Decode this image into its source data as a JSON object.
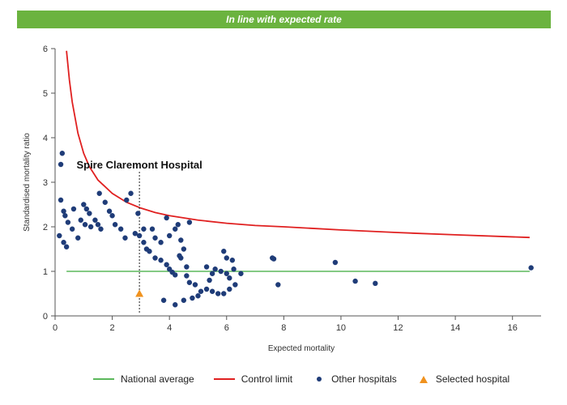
{
  "banner": {
    "text": "In line with expected rate",
    "color": "#6bb33f"
  },
  "chart_data": {
    "type": "scatter",
    "xlabel": "Expected mortality",
    "ylabel": "Standardised mortality ratio",
    "xlim": [
      0,
      17
    ],
    "ylim": [
      0,
      6
    ],
    "x_ticks": [
      "0",
      "2",
      "4",
      "6",
      "8",
      "10",
      "12",
      "14",
      "16"
    ],
    "y_ticks": [
      "0",
      "1",
      "2",
      "3",
      "4",
      "5",
      "6"
    ],
    "grid": false,
    "annotation": {
      "label": "Spire Claremont Hospital",
      "x": 2.95
    },
    "national_average": {
      "name": "National average",
      "y": 1,
      "x_range": [
        0.4,
        16.6
      ],
      "color": "#5cb85c"
    },
    "control_limit": {
      "name": "Control limit",
      "color": "#e02020",
      "points": [
        [
          0.4,
          5.95
        ],
        [
          0.5,
          5.3
        ],
        [
          0.6,
          4.8
        ],
        [
          0.8,
          4.1
        ],
        [
          1.0,
          3.65
        ],
        [
          1.2,
          3.35
        ],
        [
          1.5,
          3.05
        ],
        [
          2.0,
          2.75
        ],
        [
          2.5,
          2.55
        ],
        [
          3.0,
          2.42
        ],
        [
          3.5,
          2.32
        ],
        [
          4.0,
          2.25
        ],
        [
          5.0,
          2.15
        ],
        [
          6.0,
          2.08
        ],
        [
          7.0,
          2.03
        ],
        [
          8.0,
          2.0
        ],
        [
          10.0,
          1.93
        ],
        [
          12.0,
          1.87
        ],
        [
          14.0,
          1.82
        ],
        [
          16.6,
          1.76
        ]
      ]
    },
    "series": [
      {
        "name": "Other hospitals",
        "color": "#1f3c78",
        "points": [
          [
            0.25,
            3.65
          ],
          [
            0.2,
            3.4
          ],
          [
            0.2,
            2.6
          ],
          [
            0.3,
            2.35
          ],
          [
            0.35,
            2.25
          ],
          [
            0.45,
            2.1
          ],
          [
            0.6,
            1.95
          ],
          [
            0.8,
            1.75
          ],
          [
            0.3,
            1.65
          ],
          [
            0.4,
            1.55
          ],
          [
            0.15,
            1.8
          ],
          [
            0.65,
            2.4
          ],
          [
            0.9,
            2.15
          ],
          [
            1.0,
            2.5
          ],
          [
            1.1,
            2.4
          ],
          [
            1.2,
            2.3
          ],
          [
            1.05,
            2.05
          ],
          [
            1.25,
            2.0
          ],
          [
            1.4,
            2.15
          ],
          [
            1.5,
            2.05
          ],
          [
            1.6,
            1.95
          ],
          [
            1.55,
            2.75
          ],
          [
            1.75,
            2.55
          ],
          [
            1.9,
            2.35
          ],
          [
            2.0,
            2.25
          ],
          [
            2.1,
            2.05
          ],
          [
            2.3,
            1.95
          ],
          [
            2.45,
            1.75
          ],
          [
            2.5,
            2.6
          ],
          [
            2.65,
            2.75
          ],
          [
            2.9,
            2.3
          ],
          [
            2.95,
            1.8
          ],
          [
            2.8,
            1.85
          ],
          [
            3.1,
            1.65
          ],
          [
            3.2,
            1.5
          ],
          [
            3.1,
            1.95
          ],
          [
            3.4,
            1.95
          ],
          [
            3.5,
            1.75
          ],
          [
            3.7,
            1.65
          ],
          [
            3.9,
            2.2
          ],
          [
            4.0,
            1.8
          ],
          [
            4.2,
            1.95
          ],
          [
            4.3,
            2.05
          ],
          [
            4.4,
            1.7
          ],
          [
            4.35,
            1.35
          ],
          [
            4.5,
            1.5
          ],
          [
            4.7,
            2.1
          ],
          [
            4.6,
            1.1
          ],
          [
            4.4,
            1.3
          ],
          [
            3.3,
            1.45
          ],
          [
            3.5,
            1.3
          ],
          [
            3.7,
            1.25
          ],
          [
            3.9,
            1.15
          ],
          [
            4.0,
            1.05
          ],
          [
            4.1,
            0.98
          ],
          [
            4.2,
            0.92
          ],
          [
            4.6,
            0.9
          ],
          [
            4.7,
            0.75
          ],
          [
            4.9,
            0.7
          ],
          [
            5.1,
            0.55
          ],
          [
            5.3,
            0.6
          ],
          [
            5.5,
            0.55
          ],
          [
            5.7,
            0.5
          ],
          [
            5.9,
            0.5
          ],
          [
            6.1,
            0.6
          ],
          [
            6.3,
            0.7
          ],
          [
            6.5,
            0.95
          ],
          [
            5.3,
            1.1
          ],
          [
            5.5,
            0.95
          ],
          [
            5.6,
            1.05
          ],
          [
            5.8,
            1.0
          ],
          [
            6.0,
            0.95
          ],
          [
            6.1,
            0.85
          ],
          [
            6.25,
            1.05
          ],
          [
            5.4,
            0.8
          ],
          [
            5.0,
            0.45
          ],
          [
            4.8,
            0.4
          ],
          [
            4.5,
            0.35
          ],
          [
            4.2,
            0.25
          ],
          [
            3.8,
            0.35
          ],
          [
            5.9,
            1.45
          ],
          [
            6.0,
            1.3
          ],
          [
            6.2,
            1.25
          ],
          [
            7.6,
            1.3
          ],
          [
            7.65,
            1.28
          ],
          [
            7.8,
            0.7
          ],
          [
            9.8,
            1.2
          ],
          [
            10.5,
            0.78
          ],
          [
            11.2,
            0.73
          ],
          [
            16.65,
            1.08
          ]
        ]
      },
      {
        "name": "Selected hospital",
        "color": "#f0921e",
        "points": [
          [
            2.95,
            0.5
          ]
        ]
      }
    ],
    "legend": [
      {
        "label": "National average",
        "swatch": "line",
        "color": "#5cb85c"
      },
      {
        "label": "Control limit",
        "swatch": "line",
        "color": "#e02020"
      },
      {
        "label": "Other hospitals",
        "swatch": "dot",
        "color": "#1f3c78"
      },
      {
        "label": "Selected hospital",
        "swatch": "triangle",
        "color": "#f0921e"
      }
    ]
  }
}
